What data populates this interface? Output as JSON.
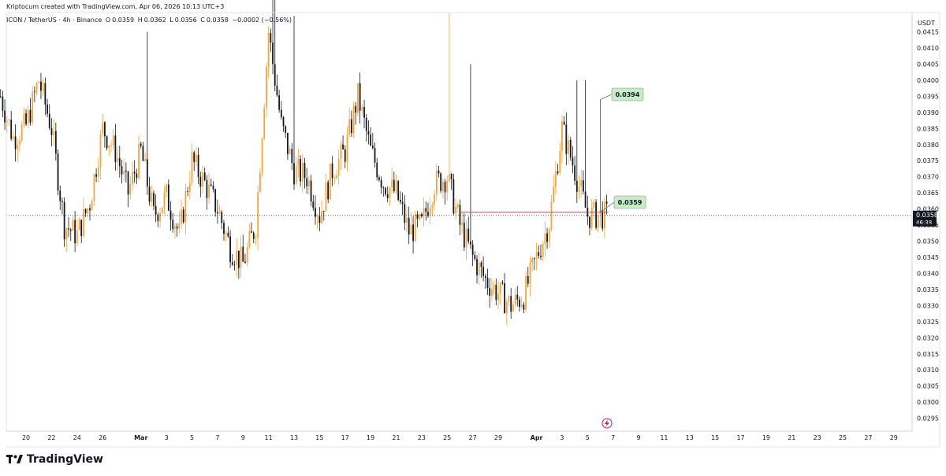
{
  "header": {
    "attribution": "Kriptocum created with TradingView.com, Apr 06, 2026 10:13 UTC+3",
    "symbol": "ICON / TetherUS · 4h · Binance",
    "ohlc": {
      "o_label": "O",
      "o": "0.0359",
      "h_label": "H",
      "h": "0.0362",
      "l_label": "L",
      "l": "0.0356",
      "c_label": "C",
      "c": "0.0358",
      "change": "−0.0002 (−0.56%)"
    }
  },
  "price_axis": {
    "unit": "USDT",
    "ticks": [
      "0.0415",
      "0.0410",
      "0.0405",
      "0.0400",
      "0.0395",
      "0.0390",
      "0.0385",
      "0.0380",
      "0.0375",
      "0.0370",
      "0.0365",
      "0.0360",
      "0.0355",
      "0.0350",
      "0.0345",
      "0.0340",
      "0.0335",
      "0.0330",
      "0.0325",
      "0.0320",
      "0.0315",
      "0.0310",
      "0.0305",
      "0.0300",
      "0.0295"
    ],
    "current_price": "0.0358",
    "countdown": "46:38"
  },
  "time_axis": {
    "labels": [
      "20",
      "22",
      "24",
      "26",
      "Mar",
      "3",
      "5",
      "7",
      "9",
      "11",
      "13",
      "15",
      "17",
      "19",
      "21",
      "23",
      "25",
      "27",
      "29",
      "Apr",
      "3",
      "5",
      "7",
      "9",
      "11",
      "13",
      "15",
      "17",
      "19",
      "21",
      "23",
      "25",
      "27",
      "29"
    ]
  },
  "annotations": {
    "target_label": "0.0394",
    "support_label": "0.0359"
  },
  "footer": {
    "brand": "TradingView"
  },
  "colors": {
    "bull": "#f7a335",
    "bear": "#131722",
    "line": "#f23645",
    "label_bg": "#c8ebc8",
    "grid": "#f0f3fa",
    "axis_text": "#131722"
  },
  "chart_data": {
    "type": "candlestick",
    "title": "ICON / TetherUS · 4h · Binance",
    "ylabel": "USDT",
    "ylim": [
      0.0291,
      0.0421
    ],
    "y_scale": "linear",
    "grid": false,
    "x_range": [
      "Feb 18",
      "Apr 30"
    ],
    "keypoints_close": [
      [
        "Feb 18",
        0.0395
      ],
      [
        "Feb 19",
        0.0382
      ],
      [
        "Feb 20",
        0.0386
      ],
      [
        "Feb 21",
        0.04
      ],
      [
        "Feb 22",
        0.0385
      ],
      [
        "Feb 23",
        0.0355
      ],
      [
        "Feb 24",
        0.0352
      ],
      [
        "Feb 25",
        0.0362
      ],
      [
        "Feb 26",
        0.0385
      ],
      [
        "Feb 27",
        0.0378
      ],
      [
        "Feb 28",
        0.0365
      ],
      [
        "Mar 1",
        0.0378
      ],
      [
        "Mar 2",
        0.0358
      ],
      [
        "Mar 3",
        0.0364
      ],
      [
        "Mar 4",
        0.0352
      ],
      [
        "Mar 5",
        0.0375
      ],
      [
        "Mar 6",
        0.0368
      ],
      [
        "Mar 7",
        0.036
      ],
      [
        "Mar 8",
        0.0348
      ],
      [
        "Mar 9",
        0.0343
      ],
      [
        "Mar 10",
        0.0355
      ],
      [
        "Mar 11",
        0.0415
      ],
      [
        "Mar 12",
        0.0386
      ],
      [
        "Mar 13",
        0.0372
      ],
      [
        "Mar 14",
        0.037
      ],
      [
        "Mar 15",
        0.0358
      ],
      [
        "Mar 16",
        0.0372
      ],
      [
        "Mar 17",
        0.0378
      ],
      [
        "Mar 18",
        0.0395
      ],
      [
        "Mar 19",
        0.0378
      ],
      [
        "Mar 20",
        0.0368
      ],
      [
        "Mar 21",
        0.0365
      ],
      [
        "Mar 22",
        0.0353
      ],
      [
        "Mar 23",
        0.0355
      ],
      [
        "Mar 24",
        0.0368
      ],
      [
        "Mar 25",
        0.037
      ],
      [
        "Mar 26",
        0.0355
      ],
      [
        "Mar 27",
        0.0345
      ],
      [
        "Mar 28",
        0.0338
      ],
      [
        "Mar 29",
        0.0334
      ],
      [
        "Mar 30",
        0.033
      ],
      [
        "Mar 31",
        0.0333
      ],
      [
        "Apr 1",
        0.0345
      ],
      [
        "Apr 2",
        0.0356
      ],
      [
        "Apr 3",
        0.0385
      ],
      [
        "Apr 4",
        0.0372
      ],
      [
        "Apr 5",
        0.0358
      ],
      [
        "Apr 6",
        0.0358
      ]
    ],
    "lines": [
      {
        "label": "0.0359",
        "y": 0.0359,
        "from": "Mar 26",
        "to": "Apr 6"
      },
      {
        "label": "0.0394",
        "y": 0.0394,
        "at": "Apr 6"
      }
    ]
  }
}
